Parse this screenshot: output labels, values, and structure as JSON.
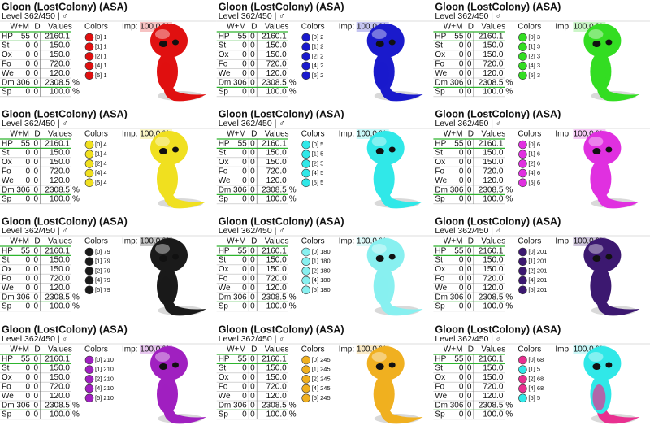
{
  "cards": [
    {
      "title": "Gloon (LostColony) (ASA)",
      "level": "Level 362/450 | ♂",
      "headers": [
        "W+M",
        "D",
        "Values"
      ],
      "stats": [
        [
          "HP",
          "55",
          "0",
          "2160.1",
          ""
        ],
        [
          "St",
          "0",
          "0",
          "150.0",
          ""
        ],
        [
          "Ox",
          "0",
          "0",
          "150.0",
          ""
        ],
        [
          "Fo",
          "0",
          "0",
          "720.0",
          ""
        ],
        [
          "We",
          "0",
          "0",
          "120.0",
          ""
        ],
        [
          "Dm",
          "306",
          "0",
          "2308.5",
          "%"
        ],
        [
          "Sp",
          "0",
          "0",
          "100.0",
          "%"
        ]
      ],
      "colors_label": "Colors",
      "colors": [
        {
          "label": "[0] 1",
          "color": "#e01010"
        },
        {
          "label": "[1] 1",
          "color": "#e01010"
        },
        {
          "label": "[2] 1",
          "color": "#e01010"
        },
        {
          "label": "[4] 1",
          "color": "#e01010"
        },
        {
          "label": "[5] 1",
          "color": "#e01010"
        }
      ],
      "imp": "Imp: 100.0 %"
    },
    {
      "title": "Gloon (LostColony) (ASA)",
      "level": "Level 362/450 | ♂",
      "headers": [
        "W+M",
        "D",
        "Values"
      ],
      "stats": [
        [
          "HP",
          "55",
          "0",
          "2160.1",
          ""
        ],
        [
          "St",
          "0",
          "0",
          "150.0",
          ""
        ],
        [
          "Ox",
          "0",
          "0",
          "150.0",
          ""
        ],
        [
          "Fo",
          "0",
          "0",
          "720.0",
          ""
        ],
        [
          "We",
          "0",
          "0",
          "120.0",
          ""
        ],
        [
          "Dm",
          "306",
          "0",
          "2308.5",
          "%"
        ],
        [
          "Sp",
          "0",
          "0",
          "100.0",
          "%"
        ]
      ],
      "colors_label": "Colors",
      "colors": [
        {
          "label": "[0] 2",
          "color": "#1a1acc"
        },
        {
          "label": "[1] 2",
          "color": "#1a1acc"
        },
        {
          "label": "[2] 2",
          "color": "#1a1acc"
        },
        {
          "label": "[4] 2",
          "color": "#1a1acc"
        },
        {
          "label": "[5] 2",
          "color": "#1a1acc"
        }
      ],
      "imp": "Imp: 100.0 %"
    },
    {
      "title": "Gloon (LostColony) (ASA)",
      "level": "Level 362/450 | ♂",
      "headers": [
        "W+M",
        "D",
        "Values"
      ],
      "stats": [
        [
          "HP",
          "55",
          "0",
          "2160.1",
          ""
        ],
        [
          "St",
          "0",
          "0",
          "150.0",
          ""
        ],
        [
          "Ox",
          "0",
          "0",
          "150.0",
          ""
        ],
        [
          "Fo",
          "0",
          "0",
          "720.0",
          ""
        ],
        [
          "We",
          "0",
          "0",
          "120.0",
          ""
        ],
        [
          "Dm",
          "306",
          "0",
          "2308.5",
          "%"
        ],
        [
          "Sp",
          "0",
          "0",
          "100.0",
          "%"
        ]
      ],
      "colors_label": "Colors",
      "colors": [
        {
          "label": "[0] 3",
          "color": "#33dd22"
        },
        {
          "label": "[1] 3",
          "color": "#33dd22"
        },
        {
          "label": "[2] 3",
          "color": "#33dd22"
        },
        {
          "label": "[4] 3",
          "color": "#33dd22"
        },
        {
          "label": "[5] 3",
          "color": "#33dd22"
        }
      ],
      "imp": "Imp: 100.0 %"
    },
    {
      "title": "Gloon (LostColony) (ASA)",
      "level": "Level 362/450 | ♂",
      "headers": [
        "W+M",
        "D",
        "Values"
      ],
      "stats": [
        [
          "HP",
          "55",
          "0",
          "2160.1",
          ""
        ],
        [
          "St",
          "0",
          "0",
          "150.0",
          ""
        ],
        [
          "Ox",
          "0",
          "0",
          "150.0",
          ""
        ],
        [
          "Fo",
          "0",
          "0",
          "720.0",
          ""
        ],
        [
          "We",
          "0",
          "0",
          "120.0",
          ""
        ],
        [
          "Dm",
          "306",
          "0",
          "2308.5",
          "%"
        ],
        [
          "Sp",
          "0",
          "0",
          "100.0",
          "%"
        ]
      ],
      "colors_label": "Colors",
      "colors": [
        {
          "label": "[0] 4",
          "color": "#f0e020"
        },
        {
          "label": "[1] 4",
          "color": "#f0e020"
        },
        {
          "label": "[2] 4",
          "color": "#f0e020"
        },
        {
          "label": "[4] 4",
          "color": "#f0e020"
        },
        {
          "label": "[5] 4",
          "color": "#f0e020"
        }
      ],
      "imp": "Imp: 100.0 %"
    },
    {
      "title": "Gloon (LostColony) (ASA)",
      "level": "Level 362/450 | ♂",
      "headers": [
        "W+M",
        "D",
        "Values"
      ],
      "stats": [
        [
          "HP",
          "55",
          "0",
          "2160.1",
          ""
        ],
        [
          "St",
          "0",
          "0",
          "150.0",
          ""
        ],
        [
          "Ox",
          "0",
          "0",
          "150.0",
          ""
        ],
        [
          "Fo",
          "0",
          "0",
          "720.0",
          ""
        ],
        [
          "We",
          "0",
          "0",
          "120.0",
          ""
        ],
        [
          "Dm",
          "306",
          "0",
          "2308.5",
          "%"
        ],
        [
          "Sp",
          "0",
          "0",
          "100.0",
          "%"
        ]
      ],
      "colors_label": "Colors",
      "colors": [
        {
          "label": "[0] 5",
          "color": "#30e8e8"
        },
        {
          "label": "[1] 5",
          "color": "#30e8e8"
        },
        {
          "label": "[2] 5",
          "color": "#30e8e8"
        },
        {
          "label": "[4] 5",
          "color": "#30e8e8"
        },
        {
          "label": "[5] 5",
          "color": "#30e8e8"
        }
      ],
      "imp": "Imp: 100.0 %"
    },
    {
      "title": "Gloon (LostColony) (ASA)",
      "level": "Level 362/450 | ♂",
      "headers": [
        "W+M",
        "D",
        "Values"
      ],
      "stats": [
        [
          "HP",
          "55",
          "0",
          "2160.1",
          ""
        ],
        [
          "St",
          "0",
          "0",
          "150.0",
          ""
        ],
        [
          "Ox",
          "0",
          "0",
          "150.0",
          ""
        ],
        [
          "Fo",
          "0",
          "0",
          "720.0",
          ""
        ],
        [
          "We",
          "0",
          "0",
          "120.0",
          ""
        ],
        [
          "Dm",
          "306",
          "0",
          "2308.5",
          "%"
        ],
        [
          "Sp",
          "0",
          "0",
          "100.0",
          "%"
        ]
      ],
      "colors_label": "Colors",
      "colors": [
        {
          "label": "[0] 6",
          "color": "#e030e0"
        },
        {
          "label": "[1] 6",
          "color": "#e030e0"
        },
        {
          "label": "[2] 6",
          "color": "#e030e0"
        },
        {
          "label": "[4] 6",
          "color": "#e030e0"
        },
        {
          "label": "[5] 6",
          "color": "#e030e0"
        }
      ],
      "imp": "Imp: 100.0 %"
    },
    {
      "title": "Gloon (LostColony) (ASA)",
      "level": "Level 362/450 | ♂",
      "headers": [
        "W+M",
        "D",
        "Values"
      ],
      "stats": [
        [
          "HP",
          "55",
          "0",
          "2160.1",
          ""
        ],
        [
          "St",
          "0",
          "0",
          "150.0",
          ""
        ],
        [
          "Ox",
          "0",
          "0",
          "150.0",
          ""
        ],
        [
          "Fo",
          "0",
          "0",
          "720.0",
          ""
        ],
        [
          "We",
          "0",
          "0",
          "120.0",
          ""
        ],
        [
          "Dm",
          "306",
          "0",
          "2308.5",
          "%"
        ],
        [
          "Sp",
          "0",
          "0",
          "100.0",
          "%"
        ]
      ],
      "colors_label": "Colors",
      "colors": [
        {
          "label": "[0] 79",
          "color": "#1a1a1a"
        },
        {
          "label": "[1] 79",
          "color": "#1a1a1a"
        },
        {
          "label": "[2] 79",
          "color": "#1a1a1a"
        },
        {
          "label": "[4] 79",
          "color": "#1a1a1a"
        },
        {
          "label": "[5] 79",
          "color": "#1a1a1a"
        }
      ],
      "imp": "Imp: 100.0 %"
    },
    {
      "title": "Gloon (LostColony) (ASA)",
      "level": "Level 362/450 | ♂",
      "headers": [
        "W+M",
        "D",
        "Values"
      ],
      "stats": [
        [
          "HP",
          "55",
          "0",
          "2160.1",
          ""
        ],
        [
          "St",
          "0",
          "0",
          "150.0",
          ""
        ],
        [
          "Ox",
          "0",
          "0",
          "150.0",
          ""
        ],
        [
          "Fo",
          "0",
          "0",
          "720.0",
          ""
        ],
        [
          "We",
          "0",
          "0",
          "120.0",
          ""
        ],
        [
          "Dm",
          "306",
          "0",
          "2308.5",
          "%"
        ],
        [
          "Sp",
          "0",
          "0",
          "100.0",
          "%"
        ]
      ],
      "colors_label": "Colors",
      "colors": [
        {
          "label": "[0] 180",
          "color": "#88f0f0"
        },
        {
          "label": "[1] 180",
          "color": "#88f0f0"
        },
        {
          "label": "[2] 180",
          "color": "#88f0f0"
        },
        {
          "label": "[4] 180",
          "color": "#88f0f0"
        },
        {
          "label": "[5] 180",
          "color": "#88f0f0"
        }
      ],
      "imp": "Imp: 100.0 %"
    },
    {
      "title": "Gloon (LostColony) (ASA)",
      "level": "Level 362/450 | ♂",
      "headers": [
        "W+M",
        "D",
        "Values"
      ],
      "stats": [
        [
          "HP",
          "55",
          "0",
          "2160.1",
          ""
        ],
        [
          "St",
          "0",
          "0",
          "150.0",
          ""
        ],
        [
          "Ox",
          "0",
          "0",
          "150.0",
          ""
        ],
        [
          "Fo",
          "0",
          "0",
          "720.0",
          ""
        ],
        [
          "We",
          "0",
          "0",
          "120.0",
          ""
        ],
        [
          "Dm",
          "306",
          "0",
          "2308.5",
          "%"
        ],
        [
          "Sp",
          "0",
          "0",
          "100.0",
          "%"
        ]
      ],
      "colors_label": "Colors",
      "colors": [
        {
          "label": "[0] 201",
          "color": "#3c1870"
        },
        {
          "label": "[1] 201",
          "color": "#3c1870"
        },
        {
          "label": "[2] 201",
          "color": "#3c1870"
        },
        {
          "label": "[4] 201",
          "color": "#3c1870"
        },
        {
          "label": "[5] 201",
          "color": "#3c1870"
        }
      ],
      "imp": "Imp: 100.0 %"
    },
    {
      "title": "Gloon (LostColony) (ASA)",
      "level": "Level 362/450 | ♂",
      "headers": [
        "W+M",
        "D",
        "Values"
      ],
      "stats": [
        [
          "HP",
          "55",
          "0",
          "2160.1",
          ""
        ],
        [
          "St",
          "0",
          "0",
          "150.0",
          ""
        ],
        [
          "Ox",
          "0",
          "0",
          "150.0",
          ""
        ],
        [
          "Fo",
          "0",
          "0",
          "720.0",
          ""
        ],
        [
          "We",
          "0",
          "0",
          "120.0",
          ""
        ],
        [
          "Dm",
          "306",
          "0",
          "2308.5",
          "%"
        ],
        [
          "Sp",
          "0",
          "0",
          "100.0",
          "%"
        ]
      ],
      "colors_label": "Colors",
      "colors": [
        {
          "label": "[0] 210",
          "color": "#a020c0"
        },
        {
          "label": "[1] 210",
          "color": "#a020c0"
        },
        {
          "label": "[2] 210",
          "color": "#a020c0"
        },
        {
          "label": "[4] 210",
          "color": "#a020c0"
        },
        {
          "label": "[5] 210",
          "color": "#a020c0"
        }
      ],
      "imp": "Imp: 100.0 %"
    },
    {
      "title": "Gloon (LostColony) (ASA)",
      "level": "Level 362/450 | ♂",
      "headers": [
        "W+M",
        "D",
        "Values"
      ],
      "stats": [
        [
          "HP",
          "55",
          "0",
          "2160.1",
          ""
        ],
        [
          "St",
          "0",
          "0",
          "150.0",
          ""
        ],
        [
          "Ox",
          "0",
          "0",
          "150.0",
          ""
        ],
        [
          "Fo",
          "0",
          "0",
          "720.0",
          ""
        ],
        [
          "We",
          "0",
          "0",
          "120.0",
          ""
        ],
        [
          "Dm",
          "306",
          "0",
          "2308.5",
          "%"
        ],
        [
          "Sp",
          "0",
          "0",
          "100.0",
          "%"
        ]
      ],
      "colors_label": "Colors",
      "colors": [
        {
          "label": "[0] 245",
          "color": "#f0b020"
        },
        {
          "label": "[1] 245",
          "color": "#f0b020"
        },
        {
          "label": "[2] 245",
          "color": "#f0b020"
        },
        {
          "label": "[4] 245",
          "color": "#f0b020"
        },
        {
          "label": "[5] 245",
          "color": "#f0b020"
        }
      ],
      "imp": "Imp: 100.0 %"
    },
    {
      "title": "Gloon (LostColony) (ASA)",
      "level": "Level 362/450 | ♂",
      "headers": [
        "W+M",
        "D",
        "Values"
      ],
      "stats": [
        [
          "HP",
          "55",
          "0",
          "2160.1",
          ""
        ],
        [
          "St",
          "0",
          "0",
          "150.0",
          ""
        ],
        [
          "Ox",
          "0",
          "0",
          "150.0",
          ""
        ],
        [
          "Fo",
          "0",
          "0",
          "720.0",
          ""
        ],
        [
          "We",
          "0",
          "0",
          "120.0",
          ""
        ],
        [
          "Dm",
          "306",
          "0",
          "2308.5",
          "%"
        ],
        [
          "Sp",
          "0",
          "0",
          "100.0",
          "%"
        ]
      ],
      "colors_label": "Colors",
      "colors": [
        {
          "label": "[0] 68",
          "color": "#e83090"
        },
        {
          "label": "[1] 5",
          "color": "#30e8e8"
        },
        {
          "label": "[2] 68",
          "color": "#e83090"
        },
        {
          "label": "[4] 68",
          "color": "#e83090"
        },
        {
          "label": "[5] 5",
          "color": "#30e8e8"
        }
      ],
      "imp": "Imp: 100.0 %"
    }
  ]
}
